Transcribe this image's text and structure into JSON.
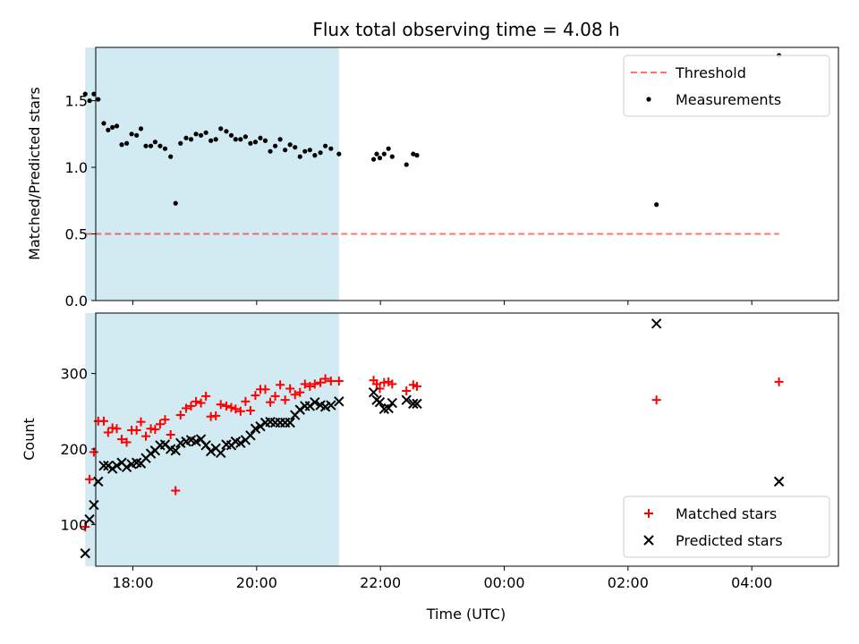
{
  "chart_data": [
    {
      "type": "scatter",
      "title": "Flux total observing time = 4.08 h",
      "ylabel": "Matched/Predicted stars",
      "xlabel": "",
      "xlim": [
        -0.6,
        11.4
      ],
      "ylim": [
        0,
        1.9
      ],
      "x_tick_labels": [
        "18:00",
        "20:00",
        "22:00",
        "00:00",
        "02:00",
        "04:00"
      ],
      "x_tick_values": [
        0.0,
        2.0,
        4.0,
        6.0,
        8.0,
        10.0
      ],
      "y_ticks": [
        0.0,
        0.5,
        1.0,
        1.5
      ],
      "y_tick_labels": [
        "0.0",
        "0.5",
        "1.0",
        "1.5"
      ],
      "legend_position": "upper right",
      "shaded_span": {
        "x0": -0.77,
        "x1": 3.33,
        "color": "#add8e6"
      },
      "colors": {
        "threshold": "#ff0000",
        "measurements": "#000000",
        "shade": "#add8e6"
      },
      "series": [
        {
          "name": "Threshold",
          "kind": "dashed-line",
          "x": [
            -0.77,
            10.44
          ],
          "y": [
            0.5,
            0.5
          ]
        },
        {
          "name": "Measurements",
          "kind": "dots",
          "x": [
            -0.77,
            -0.7,
            -0.63,
            -0.56,
            -0.47,
            -0.4,
            -0.33,
            -0.26,
            -0.18,
            -0.1,
            -0.02,
            0.06,
            0.13,
            0.21,
            0.29,
            0.36,
            0.44,
            0.52,
            0.61,
            0.69,
            0.77,
            0.86,
            0.94,
            1.02,
            1.1,
            1.18,
            1.26,
            1.34,
            1.42,
            1.51,
            1.59,
            1.66,
            1.74,
            1.82,
            1.9,
            1.98,
            2.06,
            2.14,
            2.22,
            2.3,
            2.38,
            2.46,
            2.54,
            2.62,
            2.7,
            2.78,
            2.86,
            2.94,
            3.03,
            3.11,
            3.2,
            3.33,
            3.89,
            3.94,
            3.99,
            4.06,
            4.13,
            4.19,
            4.42,
            4.53,
            4.59,
            8.46,
            10.44
          ],
          "y": [
            1.55,
            1.5,
            1.55,
            1.51,
            1.33,
            1.28,
            1.3,
            1.31,
            1.17,
            1.18,
            1.25,
            1.24,
            1.29,
            1.16,
            1.16,
            1.19,
            1.16,
            1.14,
            1.08,
            0.73,
            1.18,
            1.22,
            1.21,
            1.25,
            1.24,
            1.26,
            1.2,
            1.21,
            1.29,
            1.27,
            1.24,
            1.21,
            1.21,
            1.23,
            1.18,
            1.19,
            1.22,
            1.2,
            1.12,
            1.16,
            1.21,
            1.13,
            1.17,
            1.15,
            1.08,
            1.12,
            1.13,
            1.09,
            1.11,
            1.16,
            1.14,
            1.1,
            1.06,
            1.1,
            1.07,
            1.1,
            1.14,
            1.08,
            1.02,
            1.1,
            1.09,
            0.72,
            1.84
          ]
        }
      ]
    },
    {
      "type": "scatter",
      "title": "",
      "ylabel": "Count",
      "xlabel": "Time (UTC)",
      "xlim": [
        -0.6,
        11.4
      ],
      "ylim": [
        45,
        380
      ],
      "x_tick_labels": [
        "18:00",
        "20:00",
        "22:00",
        "00:00",
        "02:00",
        "04:00"
      ],
      "x_tick_values": [
        0.0,
        2.0,
        4.0,
        6.0,
        8.0,
        10.0
      ],
      "y_ticks": [
        100,
        200,
        300
      ],
      "y_tick_labels": [
        "100",
        "200",
        "300"
      ],
      "legend_position": "lower right",
      "shaded_span": {
        "x0": -0.77,
        "x1": 3.33,
        "color": "#add8e6"
      },
      "colors": {
        "matched": "#ff0000",
        "predicted": "#000000",
        "shade": "#add8e6"
      },
      "series": [
        {
          "name": "Matched stars",
          "marker": "plus",
          "x": [
            -0.77,
            -0.7,
            -0.63,
            -0.56,
            -0.47,
            -0.4,
            -0.33,
            -0.26,
            -0.18,
            -0.1,
            -0.02,
            0.06,
            0.13,
            0.21,
            0.29,
            0.36,
            0.44,
            0.52,
            0.61,
            0.69,
            0.77,
            0.86,
            0.94,
            1.02,
            1.1,
            1.18,
            1.26,
            1.34,
            1.42,
            1.51,
            1.59,
            1.66,
            1.74,
            1.82,
            1.9,
            1.98,
            2.06,
            2.14,
            2.22,
            2.3,
            2.38,
            2.46,
            2.54,
            2.62,
            2.7,
            2.78,
            2.86,
            2.94,
            3.03,
            3.11,
            3.2,
            3.33,
            3.89,
            3.94,
            3.99,
            4.06,
            4.13,
            4.19,
            4.42,
            4.53,
            4.59,
            8.46,
            10.44
          ],
          "y": [
            97,
            160,
            196,
            237,
            237,
            222,
            228,
            227,
            213,
            209,
            225,
            225,
            236,
            217,
            227,
            226,
            233,
            239,
            219,
            145,
            245,
            254,
            257,
            263,
            261,
            270,
            243,
            244,
            259,
            257,
            255,
            253,
            250,
            263,
            251,
            271,
            279,
            279,
            262,
            270,
            285,
            265,
            280,
            272,
            275,
            286,
            283,
            286,
            288,
            293,
            290,
            290,
            291,
            286,
            280,
            288,
            289,
            286,
            277,
            285,
            283,
            265,
            289
          ]
        },
        {
          "name": "Predicted stars",
          "marker": "x",
          "x": [
            -0.77,
            -0.7,
            -0.63,
            -0.56,
            -0.47,
            -0.4,
            -0.33,
            -0.26,
            -0.18,
            -0.1,
            -0.02,
            0.06,
            0.13,
            0.21,
            0.29,
            0.36,
            0.44,
            0.52,
            0.61,
            0.69,
            0.77,
            0.86,
            0.94,
            1.02,
            1.1,
            1.18,
            1.26,
            1.34,
            1.42,
            1.51,
            1.59,
            1.66,
            1.74,
            1.82,
            1.9,
            1.98,
            2.06,
            2.14,
            2.22,
            2.3,
            2.38,
            2.46,
            2.54,
            2.62,
            2.7,
            2.78,
            2.86,
            2.94,
            3.03,
            3.11,
            3.2,
            3.33,
            3.89,
            3.94,
            3.99,
            4.06,
            4.13,
            4.19,
            4.42,
            4.53,
            4.59,
            8.46,
            10.44
          ],
          "y": [
            62,
            107,
            126,
            157,
            178,
            178,
            174,
            178,
            182,
            176,
            180,
            182,
            181,
            188,
            194,
            198,
            205,
            206,
            200,
            198,
            208,
            210,
            212,
            210,
            213,
            205,
            197,
            201,
            195,
            206,
            205,
            210,
            208,
            212,
            218,
            227,
            230,
            235,
            236,
            235,
            235,
            235,
            235,
            245,
            252,
            257,
            257,
            262,
            258,
            256,
            258,
            263,
            275,
            265,
            262,
            253,
            254,
            261,
            265,
            260,
            260,
            366,
            157
          ]
        }
      ]
    }
  ]
}
